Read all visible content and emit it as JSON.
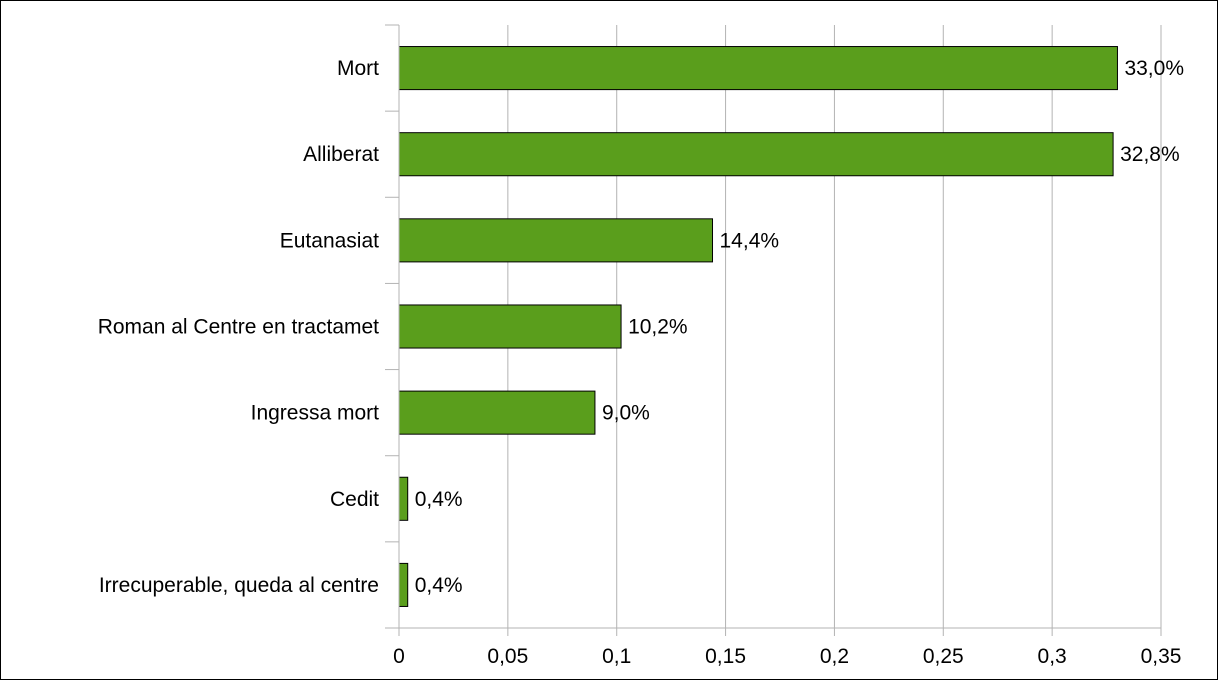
{
  "chart_data": {
    "type": "bar",
    "orientation": "horizontal",
    "title": "",
    "xlabel": "",
    "ylabel": "",
    "categories": [
      "Mort",
      "Alliberat",
      "Eutanasiat",
      "Roman al Centre en tractamet",
      "Ingressa mort",
      "Cedit",
      "Irrecuperable, queda al centre"
    ],
    "values": [
      0.33,
      0.328,
      0.144,
      0.102,
      0.09,
      0.004,
      0.004
    ],
    "data_labels": [
      "33,0%",
      "32,8%",
      "14,4%",
      "10,2%",
      "9,0%",
      "0,4%",
      "0,4%"
    ],
    "xlim": [
      0,
      0.35
    ],
    "x_ticks": [
      0,
      0.05,
      0.1,
      0.15,
      0.2,
      0.25,
      0.3,
      0.35
    ],
    "x_tick_labels": [
      "0",
      "0,05",
      "0,1",
      "0,15",
      "0,2",
      "0,25",
      "0,3",
      "0,35"
    ],
    "grid": "vertical",
    "legend": "none",
    "bar_color": "#5a9e1c",
    "bar_border_color": "#000000",
    "grid_color": "#b3b3b3"
  }
}
